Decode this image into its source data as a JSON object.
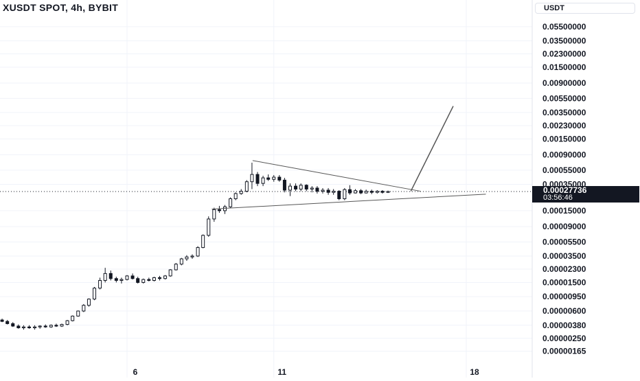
{
  "header": {
    "title": "XUSDT SPOT, 4h, BYBIT"
  },
  "currency": {
    "label": "USDT"
  },
  "last_price": {
    "value": "0.00027736",
    "countdown": "03:56:46"
  },
  "colors": {
    "up": "#ffffff",
    "down": "#131722",
    "wick": "#131722",
    "grid": "#f0f3fa",
    "axis_text": "#131722",
    "drawing": "#555555"
  },
  "chart_data": {
    "type": "candlestick",
    "symbol": "XUSDT",
    "interval": "4h",
    "exchange": "BYBIT",
    "y_scale": "log",
    "y_ticks": [
      "0.05500000",
      "0.03500000",
      "0.02300000",
      "0.01500000",
      "0.00900000",
      "0.00550000",
      "0.00350000",
      "0.00230000",
      "0.00150000",
      "0.00090000",
      "0.00055000",
      "0.00035000",
      "0.00015000",
      "0.00009000",
      "0.00005500",
      "0.00003500",
      "0.00002300",
      "0.00001500",
      "0.00000950",
      "0.00000600",
      "0.00000380",
      "0.00000250",
      "0.00000165"
    ],
    "x_ticks": [
      "6",
      "11",
      "18"
    ],
    "last_price": 0.00027736,
    "candles": [
      {
        "day": 1.0,
        "o": 4.3e-06,
        "h": 4.7e-06,
        "l": 4e-06,
        "c": 4.5e-06
      },
      {
        "day": 1.17,
        "o": 4.5e-06,
        "h": 4.8e-06,
        "l": 4.2e-06,
        "c": 4.4e-06
      },
      {
        "day": 1.33,
        "o": 4.4e-06,
        "h": 4.6e-06,
        "l": 4.1e-06,
        "c": 4.3e-06
      },
      {
        "day": 1.5,
        "o": 4.3e-06,
        "h": 4.5e-06,
        "l": 4.1e-06,
        "c": 4.3e-06
      },
      {
        "day": 1.67,
        "o": 4.3e-06,
        "h": 4.6e-06,
        "l": 4.1e-06,
        "c": 4.4e-06
      },
      {
        "day": 1.83,
        "o": 4.4e-06,
        "h": 4.7e-06,
        "l": 4.2e-06,
        "c": 4.6e-06
      },
      {
        "day": 2.0,
        "o": 4.6e-06,
        "h": 4.9e-06,
        "l": 4.3e-06,
        "c": 4.5e-06
      },
      {
        "day": 2.17,
        "o": 4.5e-06,
        "h": 4.7e-06,
        "l": 4.2e-06,
        "c": 4.3e-06
      },
      {
        "day": 2.33,
        "o": 4.3e-06,
        "h": 4.5e-06,
        "l": 3.9e-06,
        "c": 4e-06
      },
      {
        "day": 2.5,
        "o": 4e-06,
        "h": 4.2e-06,
        "l": 3.6e-06,
        "c": 3.7e-06
      },
      {
        "day": 2.67,
        "o": 3.7e-06,
        "h": 3.9e-06,
        "l": 3.4e-06,
        "c": 3.5e-06
      },
      {
        "day": 2.83,
        "o": 3.5e-06,
        "h": 3.8e-06,
        "l": 3.3e-06,
        "c": 3.6e-06
      },
      {
        "day": 3.0,
        "o": 3.6e-06,
        "h": 3.8e-06,
        "l": 3.4e-06,
        "c": 3.5e-06
      },
      {
        "day": 3.17,
        "o": 3.5e-06,
        "h": 3.8e-06,
        "l": 3.3e-06,
        "c": 3.6e-06
      },
      {
        "day": 3.33,
        "o": 3.6e-06,
        "h": 3.8e-06,
        "l": 3.4e-06,
        "c": 3.7e-06
      },
      {
        "day": 3.5,
        "o": 3.7e-06,
        "h": 3.9e-06,
        "l": 3.5e-06,
        "c": 3.6e-06
      },
      {
        "day": 3.67,
        "o": 3.6e-06,
        "h": 3.9e-06,
        "l": 3.5e-06,
        "c": 3.8e-06
      },
      {
        "day": 3.83,
        "o": 3.8e-06,
        "h": 4e-06,
        "l": 3.6e-06,
        "c": 3.7e-06
      },
      {
        "day": 4.0,
        "o": 3.7e-06,
        "h": 4e-06,
        "l": 3.6e-06,
        "c": 3.9e-06
      },
      {
        "day": 4.17,
        "o": 3.9e-06,
        "h": 4.5e-06,
        "l": 3.8e-06,
        "c": 4.4e-06
      },
      {
        "day": 4.33,
        "o": 4.4e-06,
        "h": 5.2e-06,
        "l": 4.3e-06,
        "c": 5.1e-06
      },
      {
        "day": 4.5,
        "o": 5.1e-06,
        "h": 6.1e-06,
        "l": 5e-06,
        "c": 6e-06
      },
      {
        "day": 4.67,
        "o": 6e-06,
        "h": 7.5e-06,
        "l": 5.8e-06,
        "c": 7.2e-06
      },
      {
        "day": 4.83,
        "o": 7.2e-06,
        "h": 9e-06,
        "l": 6.9e-06,
        "c": 8.8e-06
      },
      {
        "day": 5.0,
        "o": 8.8e-06,
        "h": 1.3e-05,
        "l": 8.5e-06,
        "c": 1.25e-05
      },
      {
        "day": 5.17,
        "o": 1.25e-05,
        "h": 1.75e-05,
        "l": 1.2e-05,
        "c": 1.6e-05
      },
      {
        "day": 5.33,
        "o": 1.6e-05,
        "h": 2.4e-05,
        "l": 1.5e-05,
        "c": 2e-05
      },
      {
        "day": 5.5,
        "o": 2e-05,
        "h": 2.2e-05,
        "l": 1.6e-05,
        "c": 1.7e-05
      },
      {
        "day": 5.67,
        "o": 1.7e-05,
        "h": 1.8e-05,
        "l": 1.5e-05,
        "c": 1.6e-05
      },
      {
        "day": 5.83,
        "o": 1.6e-05,
        "h": 1.75e-05,
        "l": 1.45e-05,
        "c": 1.65e-05
      },
      {
        "day": 6.0,
        "o": 1.65e-05,
        "h": 1.9e-05,
        "l": 1.6e-05,
        "c": 1.85e-05
      },
      {
        "day": 6.17,
        "o": 1.85e-05,
        "h": 2e-05,
        "l": 1.65e-05,
        "c": 1.7e-05
      },
      {
        "day": 6.33,
        "o": 1.7e-05,
        "h": 1.8e-05,
        "l": 1.45e-05,
        "c": 1.5e-05
      },
      {
        "day": 6.5,
        "o": 1.5e-05,
        "h": 1.7e-05,
        "l": 1.45e-05,
        "c": 1.65e-05
      },
      {
        "day": 6.67,
        "o": 1.65e-05,
        "h": 1.75e-05,
        "l": 1.55e-05,
        "c": 1.6e-05
      },
      {
        "day": 6.83,
        "o": 1.6e-05,
        "h": 1.8e-05,
        "l": 1.55e-05,
        "c": 1.75e-05
      },
      {
        "day": 7.0,
        "o": 1.75e-05,
        "h": 1.85e-05,
        "l": 1.6e-05,
        "c": 1.7e-05
      },
      {
        "day": 7.17,
        "o": 1.7e-05,
        "h": 1.9e-05,
        "l": 1.65e-05,
        "c": 1.85e-05
      },
      {
        "day": 7.33,
        "o": 1.85e-05,
        "h": 2.3e-05,
        "l": 1.8e-05,
        "c": 2.25e-05
      },
      {
        "day": 7.5,
        "o": 2.25e-05,
        "h": 2.8e-05,
        "l": 2.2e-05,
        "c": 2.7e-05
      },
      {
        "day": 7.67,
        "o": 2.7e-05,
        "h": 3.3e-05,
        "l": 2.6e-05,
        "c": 3.2e-05
      },
      {
        "day": 7.83,
        "o": 3.2e-05,
        "h": 3.6e-05,
        "l": 3e-05,
        "c": 3.4e-05
      },
      {
        "day": 8.0,
        "o": 3.4e-05,
        "h": 3.7e-05,
        "l": 3.2e-05,
        "c": 3.5e-05
      },
      {
        "day": 8.17,
        "o": 3.5e-05,
        "h": 4.8e-05,
        "l": 3.4e-05,
        "c": 4.6e-05
      },
      {
        "day": 8.33,
        "o": 4.6e-05,
        "h": 7e-05,
        "l": 4.5e-05,
        "c": 6.8e-05
      },
      {
        "day": 8.5,
        "o": 6.8e-05,
        "h": 0.000125,
        "l": 6.5e-05,
        "c": 0.000115
      },
      {
        "day": 8.67,
        "o": 0.000115,
        "h": 0.000165,
        "l": 0.000105,
        "c": 0.000155
      },
      {
        "day": 8.83,
        "o": 0.000155,
        "h": 0.000175,
        "l": 0.00014,
        "c": 0.00015
      },
      {
        "day": 9.0,
        "o": 0.00015,
        "h": 0.00018,
        "l": 0.000135,
        "c": 0.00017
      },
      {
        "day": 9.17,
        "o": 0.00017,
        "h": 0.00023,
        "l": 0.000165,
        "c": 0.00022
      },
      {
        "day": 9.33,
        "o": 0.00022,
        "h": 0.00027,
        "l": 0.00021,
        "c": 0.00026
      },
      {
        "day": 9.5,
        "o": 0.00026,
        "h": 0.0003,
        "l": 0.00025,
        "c": 0.00028
      },
      {
        "day": 9.67,
        "o": 0.00028,
        "h": 0.0004,
        "l": 0.00027,
        "c": 0.00038
      },
      {
        "day": 9.83,
        "o": 0.00038,
        "h": 0.0007,
        "l": 0.0003,
        "c": 0.00048
      },
      {
        "day": 10.0,
        "o": 0.00048,
        "h": 0.00052,
        "l": 0.00033,
        "c": 0.00036
      },
      {
        "day": 10.17,
        "o": 0.00036,
        "h": 0.00046,
        "l": 0.00033,
        "c": 0.00043
      },
      {
        "day": 10.33,
        "o": 0.00043,
        "h": 0.00048,
        "l": 0.00039,
        "c": 0.00041
      },
      {
        "day": 10.5,
        "o": 0.00041,
        "h": 0.00047,
        "l": 0.00038,
        "c": 0.00044
      },
      {
        "day": 10.67,
        "o": 0.00044,
        "h": 0.00047,
        "l": 0.00038,
        "c": 0.0004
      },
      {
        "day": 10.83,
        "o": 0.0004,
        "h": 0.00043,
        "l": 0.00027,
        "c": 0.00029
      },
      {
        "day": 11.0,
        "o": 0.00029,
        "h": 0.00036,
        "l": 0.00024,
        "c": 0.00033
      },
      {
        "day": 11.17,
        "o": 0.00033,
        "h": 0.00036,
        "l": 0.00028,
        "c": 0.0003
      },
      {
        "day": 11.33,
        "o": 0.0003,
        "h": 0.00036,
        "l": 0.00028,
        "c": 0.00034
      },
      {
        "day": 11.5,
        "o": 0.00034,
        "h": 0.00035,
        "l": 0.00028,
        "c": 0.0003
      },
      {
        "day": 11.67,
        "o": 0.0003,
        "h": 0.00033,
        "l": 0.00027,
        "c": 0.00031
      },
      {
        "day": 11.83,
        "o": 0.00031,
        "h": 0.00033,
        "l": 0.00026,
        "c": 0.00028
      },
      {
        "day": 12.0,
        "o": 0.00028,
        "h": 0.00031,
        "l": 0.00026,
        "c": 0.00029
      },
      {
        "day": 12.17,
        "o": 0.00029,
        "h": 0.00031,
        "l": 0.00025,
        "c": 0.00027
      },
      {
        "day": 12.33,
        "o": 0.00027,
        "h": 0.0003,
        "l": 0.00025,
        "c": 0.00028
      },
      {
        "day": 12.5,
        "o": 0.00028,
        "h": 0.00029,
        "l": 0.00021,
        "c": 0.00022
      },
      {
        "day": 12.67,
        "o": 0.00022,
        "h": 0.00031,
        "l": 0.00021,
        "c": 0.000295
      },
      {
        "day": 12.83,
        "o": 0.000295,
        "h": 0.00034,
        "l": 0.00025,
        "c": 0.000265
      },
      {
        "day": 13.0,
        "o": 0.000265,
        "h": 0.0003,
        "l": 0.00026,
        "c": 0.000285
      },
      {
        "day": 13.17,
        "o": 0.000285,
        "h": 0.0003,
        "l": 0.000255,
        "c": 0.000265
      },
      {
        "day": 13.33,
        "o": 0.000265,
        "h": 0.000295,
        "l": 0.00026,
        "c": 0.00028
      },
      {
        "day": 13.5,
        "o": 0.00028,
        "h": 0.000295,
        "l": 0.000255,
        "c": 0.00027
      },
      {
        "day": 13.67,
        "o": 0.00027,
        "h": 0.00029,
        "l": 0.00026,
        "c": 0.00028
      },
      {
        "day": 13.83,
        "o": 0.00028,
        "h": 0.00029,
        "l": 0.00026,
        "c": 0.00027
      },
      {
        "day": 14.0,
        "o": 0.00027,
        "h": 0.000285,
        "l": 0.000265,
        "c": 0.0002775
      }
    ],
    "drawings": [
      {
        "type": "trendline",
        "from": {
          "day": 9.85,
          "price": 0.00075
        },
        "to": {
          "day": 15.0,
          "price": 0.00028
        }
      },
      {
        "type": "trendline",
        "from": {
          "day": 8.6,
          "price": 0.000158
        },
        "to": {
          "day": 17.0,
          "price": 0.000255
        }
      },
      {
        "type": "trendline",
        "from": {
          "day": 14.7,
          "price": 0.00028
        },
        "to": {
          "day": 16.0,
          "price": 0.0043
        }
      }
    ]
  }
}
